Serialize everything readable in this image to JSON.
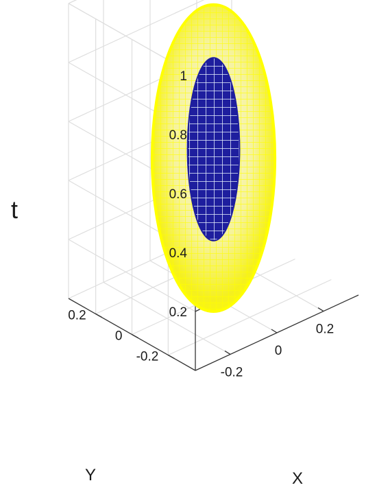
{
  "chart_data": {
    "type": "surface",
    "title": "",
    "xlabel": "X",
    "ylabel": "Y",
    "zlabel": "t",
    "xlim": [
      -0.35,
      0.35
    ],
    "ylim": [
      -0.35,
      0.35
    ],
    "zlim": [
      0,
      1
    ],
    "xticks": [
      -0.2,
      0,
      0.2
    ],
    "yticks": [
      -0.2,
      0,
      0.2
    ],
    "zticks": [
      0.2,
      0.4,
      0.6,
      0.8,
      1
    ],
    "xtick_labels": [
      "-0.2",
      "0",
      "0.2"
    ],
    "ytick_labels": [
      "-0.2",
      "0",
      "0.2"
    ],
    "ztick_labels": [
      "0.2",
      "0.4",
      "0.6",
      "0.8",
      "1"
    ],
    "grid": true,
    "series": [
      {
        "shape": "ellipsoid",
        "center": [
          0,
          0,
          0.47
        ],
        "radii": [
          0.26,
          0.26,
          0.52
        ],
        "face_color": "#ffff00",
        "edge_color": "#ffff00"
      },
      {
        "shape": "ellipsoid",
        "center": [
          0,
          0,
          0.5
        ],
        "radii": [
          0.11,
          0.11,
          0.31
        ],
        "face_color": "#ffffff",
        "edge_color": "#1e1e9e"
      }
    ]
  }
}
